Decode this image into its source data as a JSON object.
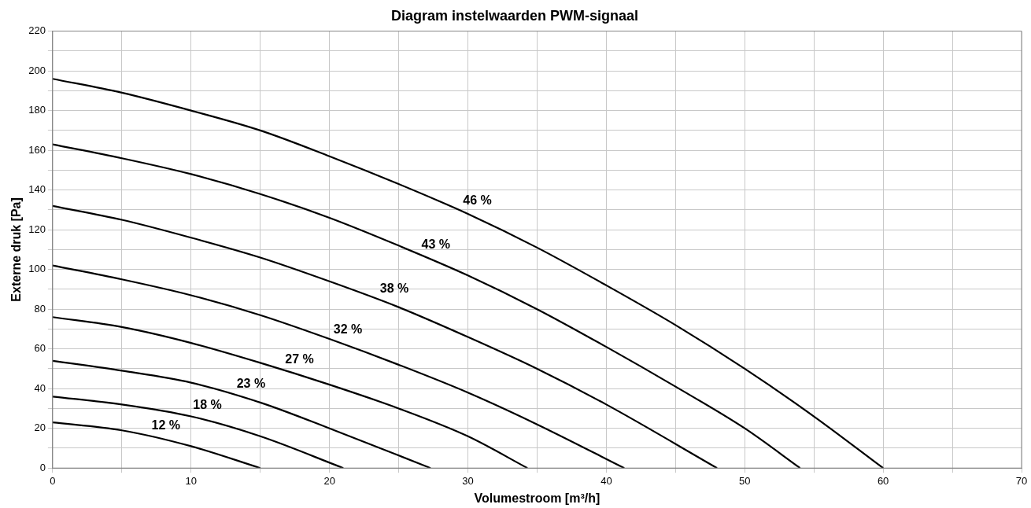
{
  "chart_data": {
    "type": "line",
    "title": "Diagram instelwaarden PWM-signaal",
    "xlabel": "Volumestroom [m³/h]",
    "ylabel": "Externe druk [Pa]",
    "xlim": [
      0,
      70
    ],
    "ylim": [
      0,
      220
    ],
    "xticks": [
      0,
      {
        "value": 5,
        "label": null
      },
      10,
      {
        "value": 15,
        "label": null
      },
      20,
      {
        "value": 25,
        "label": null
      },
      30,
      {
        "value": 35,
        "label": null
      },
      40,
      {
        "value": 45,
        "label": null
      },
      50,
      {
        "value": 55,
        "label": null
      },
      60,
      {
        "value": 65,
        "label": null
      },
      70
    ],
    "yticks": [
      0,
      {
        "value": 10,
        "label": null
      },
      20,
      {
        "value": 30,
        "label": null
      },
      40,
      {
        "value": 50,
        "label": null
      },
      60,
      {
        "value": 70,
        "label": null
      },
      80,
      {
        "value": 90,
        "label": null
      },
      100,
      {
        "value": 110,
        "label": null
      },
      120,
      {
        "value": 130,
        "label": null
      },
      140,
      {
        "value": 150,
        "label": null
      },
      160,
      {
        "value": 170,
        "label": null
      },
      180,
      {
        "value": 190,
        "label": null
      },
      200,
      {
        "value": 210,
        "label": null
      },
      220
    ],
    "grid": true,
    "legend": false,
    "marker": "none",
    "line_style": "solid",
    "series": [
      {
        "name": "12 %",
        "color": "#000000",
        "x": [
          0,
          5,
          10,
          15
        ],
        "values": [
          23,
          19,
          11,
          0
        ]
      },
      {
        "name": "18 %",
        "color": "#000000",
        "x": [
          0,
          5,
          10,
          15,
          21
        ],
        "values": [
          36,
          32,
          26,
          16,
          0
        ]
      },
      {
        "name": "23 %",
        "color": "#000000",
        "x": [
          0,
          5,
          10,
          15,
          20,
          27.3
        ],
        "values": [
          54,
          49,
          43,
          33,
          20,
          0
        ]
      },
      {
        "name": "27 %",
        "color": "#000000",
        "x": [
          0,
          5,
          10,
          15,
          20,
          25,
          30,
          34.3
        ],
        "values": [
          76,
          71,
          63,
          53,
          42,
          30,
          16,
          0
        ]
      },
      {
        "name": "32 %",
        "color": "#000000",
        "x": [
          0,
          5,
          10,
          15,
          20,
          25,
          30,
          35,
          41.3
        ],
        "values": [
          102,
          95,
          87,
          77,
          65,
          52,
          38,
          22,
          0
        ]
      },
      {
        "name": "38 %",
        "color": "#000000",
        "x": [
          0,
          5,
          10,
          15,
          20,
          25,
          30,
          35,
          40,
          48
        ],
        "values": [
          132,
          125,
          116,
          106,
          94,
          81,
          66,
          50,
          32,
          0
        ]
      },
      {
        "name": "43 %",
        "color": "#000000",
        "x": [
          0,
          5,
          10,
          15,
          20,
          25,
          30,
          35,
          40,
          45,
          50,
          54
        ],
        "values": [
          163,
          156,
          148,
          138,
          126,
          112,
          97,
          80,
          61,
          41,
          20,
          0
        ]
      },
      {
        "name": "46 %",
        "color": "#000000",
        "x": [
          0,
          5,
          10,
          15,
          20,
          25,
          30,
          35,
          40,
          45,
          50,
          55,
          60
        ],
        "values": [
          196,
          189,
          180,
          170,
          157,
          143,
          128,
          111,
          92,
          72,
          50,
          26,
          0
        ]
      }
    ]
  }
}
